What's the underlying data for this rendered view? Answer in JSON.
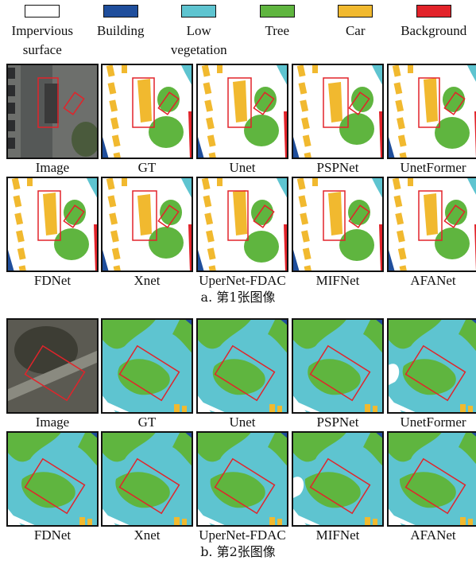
{
  "legend": [
    {
      "label": "Impervious surface",
      "color": "#ffffff"
    },
    {
      "label": "Building",
      "color": "#1f4e9c"
    },
    {
      "label": "Low vegetation",
      "color": "#5ec4d0"
    },
    {
      "label": "Tree",
      "color": "#5fb53f"
    },
    {
      "label": "Car",
      "color": "#f1b92f"
    },
    {
      "label": "Background",
      "color": "#e2232a"
    }
  ],
  "panels": [
    {
      "caption": "a. 第1张图像",
      "tiles": [
        "Image",
        "GT",
        "Unet",
        "PSPNet",
        "UnetFormer",
        "FDNet",
        "Xnet",
        "UperNet-FDAC",
        "MIFNet",
        "AFANet"
      ]
    },
    {
      "caption": "b. 第2张图像",
      "tiles": [
        "Image",
        "GT",
        "Unet",
        "PSPNet",
        "UnetFormer",
        "FDNet",
        "Xnet",
        "UperNet-FDAC",
        "MIFNet",
        "AFANet"
      ]
    }
  ]
}
